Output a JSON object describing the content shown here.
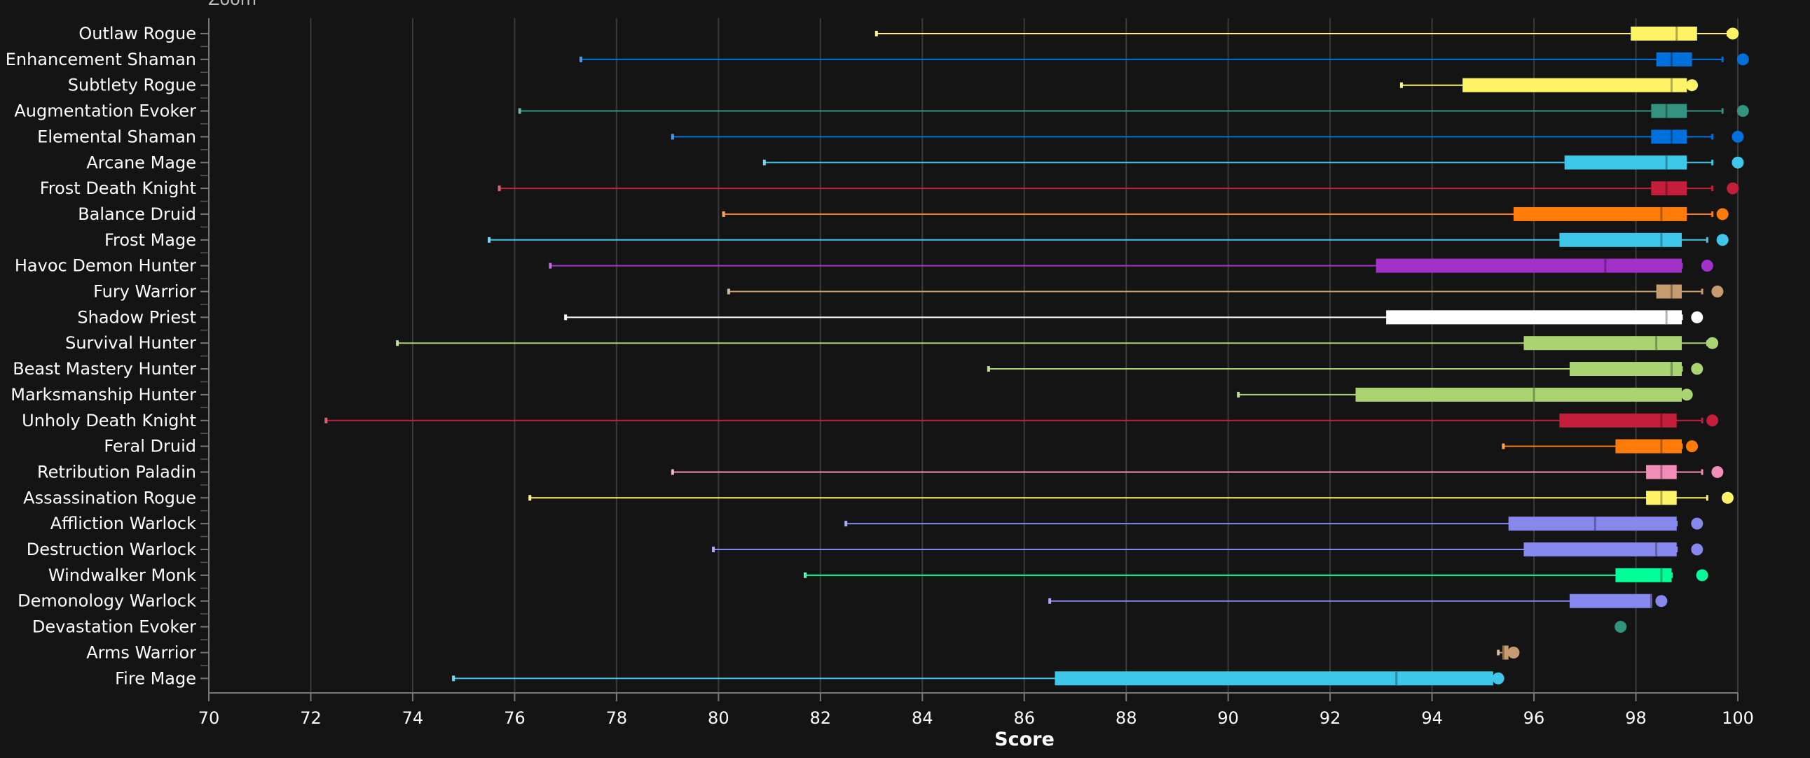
{
  "zoom_label": "Zoom",
  "chart_data": {
    "type": "boxplot",
    "orientation": "horizontal",
    "xlabel": "Score",
    "xlim": [
      70,
      100
    ],
    "x_ticks": [
      70,
      72,
      74,
      76,
      78,
      80,
      82,
      84,
      86,
      88,
      90,
      92,
      94,
      96,
      98,
      100
    ],
    "grid": "vertical",
    "series": [
      {
        "name": "Outlaw Rogue",
        "color": "#FFF468",
        "min": 83.1,
        "q1": 97.9,
        "median": 98.8,
        "q3": 99.2,
        "max": 99.8,
        "point": 99.9
      },
      {
        "name": "Enhancement Shaman",
        "color": "#0070DD",
        "min": 77.3,
        "q1": 98.4,
        "median": 98.7,
        "q3": 99.1,
        "max": 99.7,
        "point": 100.1
      },
      {
        "name": "Subtlety Rogue",
        "color": "#FFF468",
        "min": 93.4,
        "q1": 94.6,
        "median": 98.7,
        "q3": 99.0,
        "max": 99.0,
        "point": 99.1
      },
      {
        "name": "Augmentation Evoker",
        "color": "#33937F",
        "min": 76.1,
        "q1": 98.3,
        "median": 98.6,
        "q3": 99.0,
        "max": 99.7,
        "point": 100.1
      },
      {
        "name": "Elemental Shaman",
        "color": "#0070DD",
        "min": 79.1,
        "q1": 98.3,
        "median": 98.7,
        "q3": 99.0,
        "max": 99.5,
        "point": 100.0
      },
      {
        "name": "Arcane Mage",
        "color": "#3FC7EB",
        "min": 80.9,
        "q1": 96.6,
        "median": 98.6,
        "q3": 99.0,
        "max": 99.5,
        "point": 100.0
      },
      {
        "name": "Frost Death Knight",
        "color": "#C41E3A",
        "min": 75.7,
        "q1": 98.3,
        "median": 98.6,
        "q3": 99.0,
        "max": 99.5,
        "point": 99.9
      },
      {
        "name": "Balance Druid",
        "color": "#FF7C0A",
        "min": 80.1,
        "q1": 95.6,
        "median": 98.5,
        "q3": 99.0,
        "max": 99.5,
        "point": 99.7
      },
      {
        "name": "Frost Mage",
        "color": "#3FC7EB",
        "min": 75.5,
        "q1": 96.5,
        "median": 98.5,
        "q3": 98.9,
        "max": 99.4,
        "point": 99.7
      },
      {
        "name": "Havoc Demon Hunter",
        "color": "#A330C9",
        "min": 76.7,
        "q1": 92.9,
        "median": 97.4,
        "q3": 98.9,
        "max": 98.9,
        "point": 99.4
      },
      {
        "name": "Fury Warrior",
        "color": "#C69B6D",
        "min": 80.2,
        "q1": 98.4,
        "median": 98.7,
        "q3": 98.9,
        "max": 99.3,
        "point": 99.6
      },
      {
        "name": "Shadow Priest",
        "color": "#FFFFFF",
        "min": 77.0,
        "q1": 93.1,
        "median": 98.6,
        "q3": 98.9,
        "max": 98.9,
        "point": 99.2
      },
      {
        "name": "Survival Hunter",
        "color": "#AAD372",
        "min": 73.7,
        "q1": 95.8,
        "median": 98.4,
        "q3": 98.9,
        "max": 99.4,
        "point": 99.5
      },
      {
        "name": "Beast Mastery Hunter",
        "color": "#AAD372",
        "min": 85.3,
        "q1": 96.7,
        "median": 98.7,
        "q3": 98.9,
        "max": 98.9,
        "point": 99.2
      },
      {
        "name": "Marksmanship Hunter",
        "color": "#AAD372",
        "min": 90.2,
        "q1": 92.5,
        "median": 96.0,
        "q3": 98.9,
        "max": 98.9,
        "point": 99.0
      },
      {
        "name": "Unholy Death Knight",
        "color": "#C41E3A",
        "min": 72.3,
        "q1": 96.5,
        "median": 98.5,
        "q3": 98.8,
        "max": 99.3,
        "point": 99.5
      },
      {
        "name": "Feral Druid",
        "color": "#FF7C0A",
        "min": 95.4,
        "q1": 97.6,
        "median": 98.5,
        "q3": 98.9,
        "max": 98.9,
        "point": 99.1
      },
      {
        "name": "Retribution Paladin",
        "color": "#F48CBA",
        "min": 79.1,
        "q1": 98.2,
        "median": 98.5,
        "q3": 98.8,
        "max": 99.3,
        "point": 99.6
      },
      {
        "name": "Assassination Rogue",
        "color": "#FFF468",
        "min": 76.3,
        "q1": 98.2,
        "median": 98.5,
        "q3": 98.8,
        "max": 99.4,
        "point": 99.8
      },
      {
        "name": "Affliction Warlock",
        "color": "#8788EE",
        "min": 82.5,
        "q1": 95.5,
        "median": 97.2,
        "q3": 98.8,
        "max": 98.8,
        "point": 99.2
      },
      {
        "name": "Destruction Warlock",
        "color": "#8788EE",
        "min": 79.9,
        "q1": 95.8,
        "median": 98.4,
        "q3": 98.8,
        "max": 98.8,
        "point": 99.2
      },
      {
        "name": "Windwalker Monk",
        "color": "#00FF98",
        "min": 81.7,
        "q1": 97.6,
        "median": 98.5,
        "q3": 98.7,
        "max": 98.7,
        "point": 99.3
      },
      {
        "name": "Demonology Warlock",
        "color": "#8788EE",
        "min": 86.5,
        "q1": 96.7,
        "median": 98.3,
        "q3": 98.3,
        "max": 98.3,
        "point": 98.5
      },
      {
        "name": "Devastation Evoker",
        "color": "#33937F",
        "point": 97.7
      },
      {
        "name": "Arms Warrior",
        "color": "#C69B6D",
        "min": 95.3,
        "q1": 95.4,
        "median": 95.4,
        "q3": 95.5,
        "max": 95.5,
        "point": 95.6
      },
      {
        "name": "Fire Mage",
        "color": "#3FC7EB",
        "min": 74.8,
        "q1": 86.6,
        "median": 93.3,
        "q3": 95.2,
        "max": 95.2,
        "point": 95.3
      }
    ]
  }
}
